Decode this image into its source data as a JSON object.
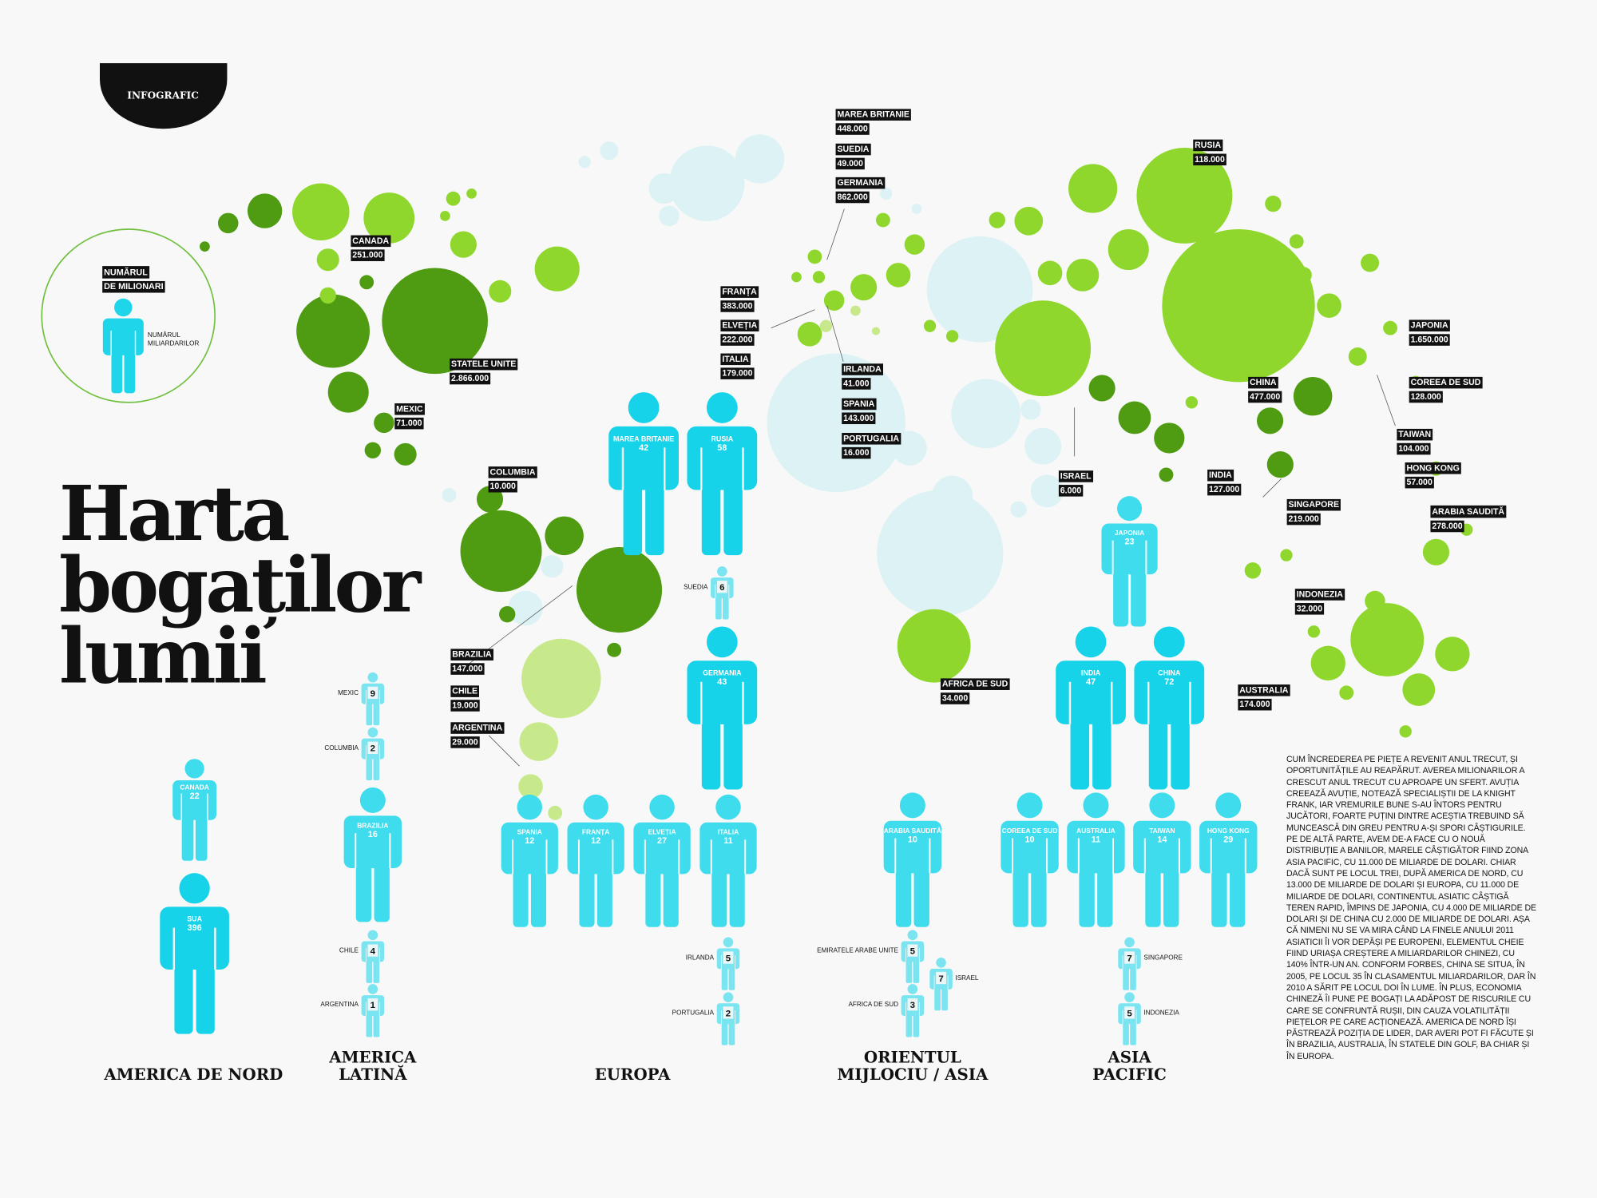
{
  "badge": "INFOGRAFIC",
  "title": [
    "Harta",
    "bogaților",
    "lumii"
  ],
  "legend": {
    "millionaires": [
      "NUMĂRUL",
      "DE MILIONARI"
    ],
    "billionaires": [
      "NUMĂRUL",
      "MILIARDARILOR"
    ]
  },
  "millionaires": [
    {
      "country": "MAREA BRITANIE",
      "count": "448.000"
    },
    {
      "country": "SUEDIA",
      "count": "49.000"
    },
    {
      "country": "GERMANIA",
      "count": "862.000"
    },
    {
      "country": "CANADA",
      "count": "251.000"
    },
    {
      "country": "FRANȚA",
      "count": "383.000"
    },
    {
      "country": "ELVEȚIA",
      "count": "222.000"
    },
    {
      "country": "ITALIA",
      "count": "179.000"
    },
    {
      "country": "STATELE UNITE",
      "count": "2.866.000"
    },
    {
      "country": "MEXIC",
      "count": "71.000"
    },
    {
      "country": "IRLANDA",
      "count": "41.000"
    },
    {
      "country": "SPANIA",
      "count": "143.000"
    },
    {
      "country": "PORTUGALIA",
      "count": "16.000"
    },
    {
      "country": "COLUMBIA",
      "count": "10.000"
    },
    {
      "country": "BRAZILIA",
      "count": "147.000"
    },
    {
      "country": "CHILE",
      "count": "19.000"
    },
    {
      "country": "ARGENTINA",
      "count": "29.000"
    },
    {
      "country": "AFRICA DE SUD",
      "count": "34.000"
    },
    {
      "country": "RUSIA",
      "count": "118.000"
    },
    {
      "country": "JAPONIA",
      "count": "1.650.000"
    },
    {
      "country": "COREEA DE SUD",
      "count": "128.000"
    },
    {
      "country": "CHINA",
      "count": "477.000"
    },
    {
      "country": "TAIWAN",
      "count": "104.000"
    },
    {
      "country": "HONG KONG",
      "count": "57.000"
    },
    {
      "country": "ISRAEL",
      "count": "6.000"
    },
    {
      "country": "INDIA",
      "count": "127.000"
    },
    {
      "country": "SINGAPORE",
      "count": "219.000"
    },
    {
      "country": "ARABIA SAUDITĂ",
      "count": "278.000"
    },
    {
      "country": "INDONEZIA",
      "count": "32.000"
    },
    {
      "country": "AUSTRALIA",
      "count": "174.000"
    }
  ],
  "regions": [
    {
      "name": [
        "AMERICA DE NORD"
      ],
      "figures": [
        {
          "name": "CANADA",
          "billionaires": 22
        },
        {
          "name": "SUA",
          "billionaires": 396
        }
      ]
    },
    {
      "name": [
        "AMERICA",
        "LATINĂ"
      ],
      "figures": [
        {
          "name": "MEXIC",
          "billionaires": 9
        },
        {
          "name": "COLUMBIA",
          "billionaires": 2
        },
        {
          "name": "BRAZILIA",
          "billionaires": 16
        },
        {
          "name": "CHILE",
          "billionaires": 4
        },
        {
          "name": "ARGENTINA",
          "billionaires": 1
        }
      ]
    },
    {
      "name": [
        "EUROPA"
      ],
      "figures": [
        {
          "name": "MAREA BRITANIE",
          "billionaires": 42
        },
        {
          "name": "RUSIA",
          "billionaires": 58
        },
        {
          "name": "SUEDIA",
          "billionaires": 6
        },
        {
          "name": "GERMANIA",
          "billionaires": 43
        },
        {
          "name": "SPANIA",
          "billionaires": 12
        },
        {
          "name": "FRANȚA",
          "billionaires": 12
        },
        {
          "name": "ELVEȚIA",
          "billionaires": 27
        },
        {
          "name": "ITALIA",
          "billionaires": 11
        },
        {
          "name": "IRLANDA",
          "billionaires": 5
        },
        {
          "name": "PORTUGALIA",
          "billionaires": 2
        }
      ]
    },
    {
      "name": [
        "ORIENTUL",
        "MIJLOCIU / ASIA"
      ],
      "figures": [
        {
          "name": "ARABIA SAUDITĂ",
          "billionaires": 10
        },
        {
          "name": "EMIRATELE ARABE UNITE",
          "billionaires": 5
        },
        {
          "name": "ISRAEL",
          "billionaires": 7
        },
        {
          "name": "AFRICA DE SUD",
          "billionaires": 3
        }
      ]
    },
    {
      "name": [
        "ASIA",
        "PACIFIC"
      ],
      "figures": [
        {
          "name": "JAPONIA",
          "billionaires": 23
        },
        {
          "name": "INDIA",
          "billionaires": 47
        },
        {
          "name": "CHINA",
          "billionaires": 72
        },
        {
          "name": "COREEA DE SUD",
          "billionaires": 10
        },
        {
          "name": "AUSTRALIA",
          "billionaires": 11
        },
        {
          "name": "TAIWAN",
          "billionaires": 14
        },
        {
          "name": "HONG KONG",
          "billionaires": 29
        },
        {
          "name": "SINGAPORE",
          "billionaires": 7
        },
        {
          "name": "INDONEZIA",
          "billionaires": 5
        }
      ]
    }
  ],
  "body": "CUM ÎNCREDEREA PE PIEȚE A REVENIT ANUL TRECUT, ȘI OPORTUNITĂȚILE AU REAPĂRUT. AVEREA MILIONARILOR A CRESCUT ANUL TRECUT CU APROAPE UN SFERT. AVUȚIA CREEAZĂ AVUȚIE, NOTEAZĂ SPECIALIȘTII DE LA KNIGHT FRANK, IAR VREMURILE BUNE S-AU ÎNTORS PENTRU JUCĂTORI, FOARTE PUȚINI DINTRE ACEȘTIA TREBUIND SĂ MUNCEASCĂ DIN GREU PENTRU A-ȘI SPORI CÂȘTIGURILE. PE DE ALTĂ PARTE, AVEM DE-A FACE CU O NOUĂ DISTRIBUȚIE A BANILOR, MARELE CÂȘTIGĂTOR FIIND ZONA ASIA PACIFIC, CU 11.000 DE MILIARDE DE DOLARI. CHIAR DACĂ SUNT PE LOCUL TREI, DUPĂ AMERICA DE NORD, CU 13.000 DE MILIARDE DE DOLARI ȘI EUROPA, CU 11.000 DE MILIARDE DE DOLARI, CONTINENTUL ASIATIC CÂȘTIGĂ TEREN RAPID, ÎMPINS DE JAPONIA, CU 4.000 DE MILIARDE DE DOLARI ȘI DE CHINA CU 2.000 DE MILIARDE DE DOLARI. AȘA CĂ NIMENI NU SE VA MIRA CÂND LA FINELE ANULUI 2011 ASIATICII ÎI VOR DEPĂȘI PE EUROPENI, ELEMENTUL CHEIE FIIND URIAȘA CREȘTERE A MILIARDARILOR CHINEZI, CU 140% ÎNTR-UN AN. CONFORM FORBES, CHINA SE SITUA, ÎN 2005, PE LOCUL 35 ÎN CLASAMENTUL MILIARDARILOR, DAR ÎN 2010 A SĂRIT PE LOCUL DOI ÎN LUME. ÎN PLUS, ECONOMIA CHINEZĂ ÎI PUNE PE BOGAȚI LA ADĂPOST DE RISCURILE CU CARE SE CONFRUNTĂ RUȘII, DIN CAUZA VOLATILITĂȚII PIEȚELOR PE CARE ACȚIONEAZĂ. AMERICA DE NORD ÎȘI PĂSTREAZĂ POZIȚIA DE LIDER, DAR AVERI POT FI FĂCUTE ȘI ÎN BRAZILIA, AUSTRALIA, ÎN STATELE DIN GOLF, BA CHIAR ȘI ÎN EUROPA."
}
